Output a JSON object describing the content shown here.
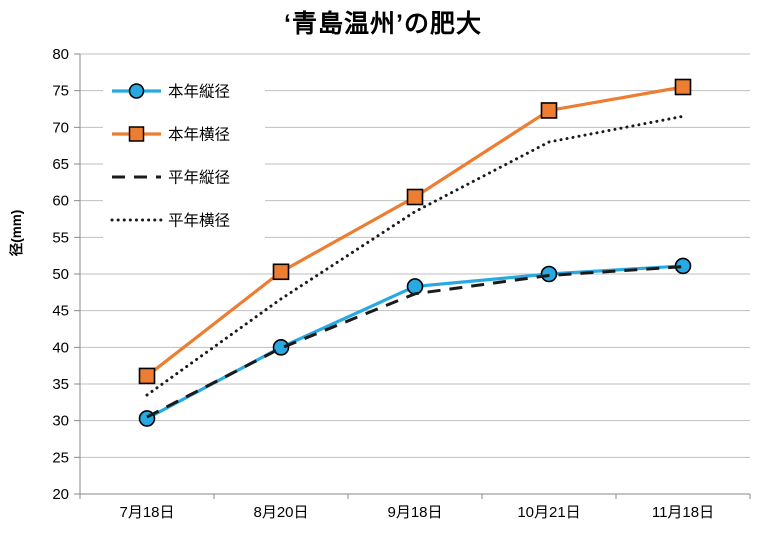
{
  "chart_data": {
    "type": "line",
    "title": "‘青島温州’の肥大",
    "ylabel": "径(mm)",
    "xlabel": "",
    "ylim": [
      20,
      80
    ],
    "yticks": [
      20,
      25,
      30,
      35,
      40,
      45,
      50,
      55,
      60,
      65,
      70,
      75,
      80
    ],
    "grid": true,
    "grid_color": "#BFBFBF",
    "axis_color": "#898989",
    "legend_position": "top-left-inside",
    "legend_background": "#FFFFFF",
    "categories": [
      "7月18日",
      "8月20日",
      "9月18日",
      "10月21日",
      "11月18日"
    ],
    "series": [
      {
        "id": "this-year-vertical-diameter",
        "name": "本年縦径",
        "color": "#29A9E1",
        "line": "solid",
        "marker": "circle",
        "marker_outline": "#000000",
        "values": [
          30.3,
          40.0,
          48.3,
          50.0,
          51.1
        ]
      },
      {
        "id": "this-year-horizontal-diameter",
        "name": "本年横径",
        "color": "#ED7D31",
        "line": "solid",
        "marker": "square",
        "marker_outline": "#000000",
        "values": [
          36.1,
          50.3,
          60.5,
          72.3,
          75.5
        ]
      },
      {
        "id": "normal-year-vertical-diameter",
        "name": "平年縦径",
        "color": "#1A1A1A",
        "line": "dashed",
        "marker": "none",
        "values": [
          30.5,
          39.9,
          47.3,
          49.8,
          51.0
        ]
      },
      {
        "id": "normal-year-horizontal-diameter",
        "name": "平年横径",
        "color": "#1A1A1A",
        "line": "dotted",
        "marker": "none",
        "values": [
          33.5,
          46.6,
          58.5,
          68.0,
          71.5
        ]
      }
    ]
  }
}
